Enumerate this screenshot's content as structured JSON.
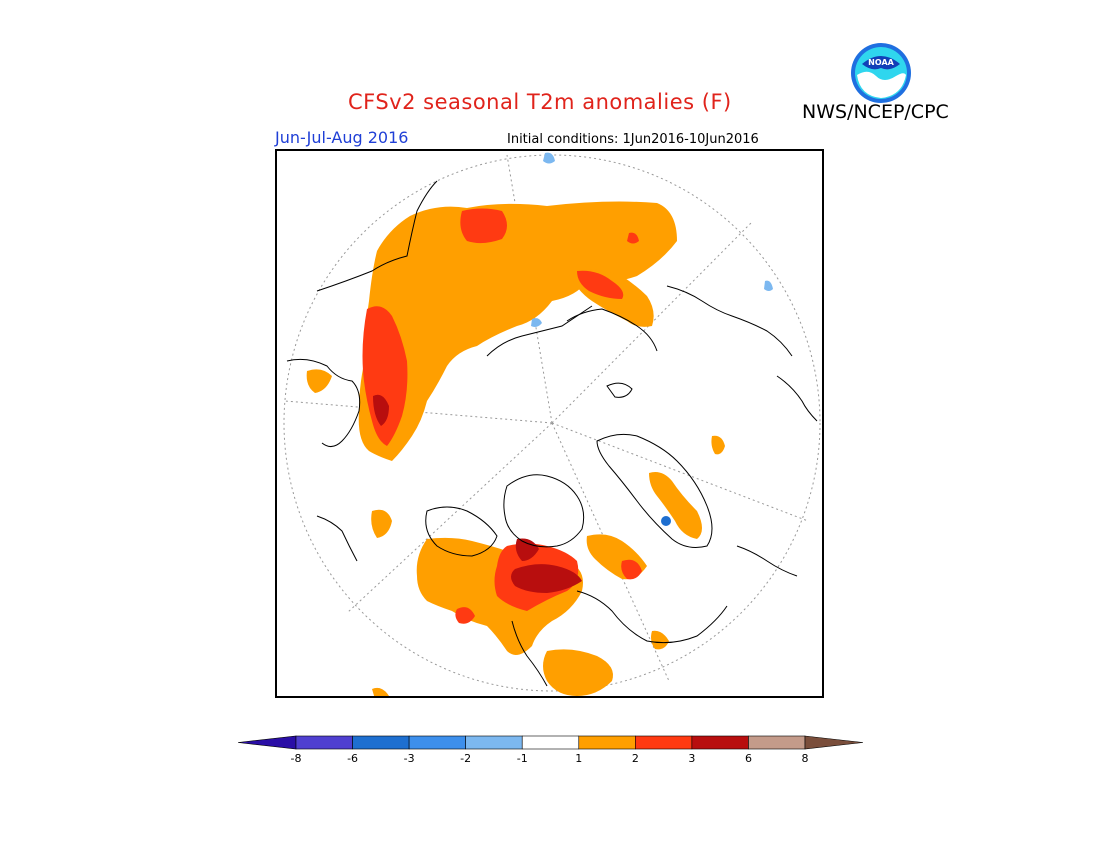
{
  "header": {
    "title": "CFSv2 seasonal T2m anomalies (F)",
    "agency": "NWS/NCEP/CPC",
    "season": "Jun-Jul-Aug 2016",
    "initial_conditions": "Initial conditions: 1Jun2016-10Jun2016",
    "logo_text": "NOAA"
  },
  "legend": {
    "colors": [
      "#2a0ea6",
      "#4f3fd0",
      "#1e6fd0",
      "#3d8fec",
      "#7cb8f0",
      "#ffffff",
      "#ff9f00",
      "#ff3a12",
      "#b80e0e",
      "#c49b8a",
      "#7a4e3b"
    ],
    "labels": [
      "-8",
      "-6",
      "-3",
      "-2",
      "-1",
      "1",
      "2",
      "3",
      "6",
      "8"
    ]
  },
  "colors": {
    "anom_1_2": "#ff9f00",
    "anom_2_3": "#ff3a12",
    "anom_3_6": "#b80e0e",
    "anom_neg": "#7cb8f0",
    "anom_neg2": "#1e6fd0"
  }
}
